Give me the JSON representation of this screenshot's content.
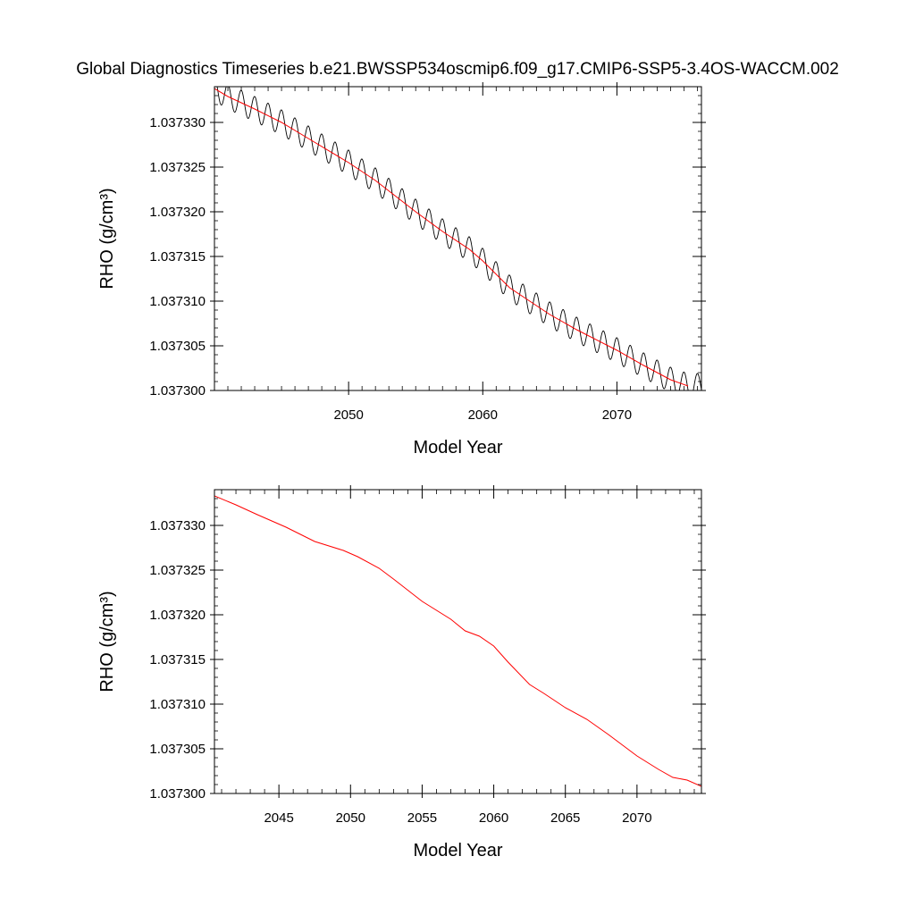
{
  "title": "Global Diagnostics Timeseries b.e21.BWSSP534oscmip6.f09_g17.CMIP6-SSP5-3.4OS-WACCM.002",
  "colors": {
    "raw_series": "#000000",
    "smooth_series": "#ff0000",
    "axes": "#000000"
  },
  "chart_data": [
    {
      "type": "line",
      "xlabel": "Model Year",
      "ylabel": "RHO (g/cm³)",
      "xlim": [
        2040,
        2076.3
      ],
      "ylim": [
        1.0373,
        1.037334
      ],
      "xticks": [
        2050,
        2060,
        2070
      ],
      "xtick_labels": [
        "2050",
        "2060",
        "2070"
      ],
      "yticks": [
        1.0373,
        1.037305,
        1.03731,
        1.037315,
        1.03732,
        1.037325,
        1.03733
      ],
      "ytick_labels": [
        "1.037300",
        "1.037305",
        "1.037310",
        "1.037315",
        "1.037320",
        "1.037325",
        "1.037330"
      ],
      "grid": false,
      "series": [
        {
          "role": "monthly",
          "color": "#000000",
          "trend": {
            "x": [
              2040.0,
              2041.0,
              2043.0,
              2045.0,
              2047.0,
              2050.0,
              2052.0,
              2055.0,
              2057.0,
              2059.0,
              2060.0,
              2062.0,
              2065.0,
              2067.0,
              2070.0,
              2072.0,
              2074.0,
              2075.3
            ],
            "y": [
              1.0373338,
              1.0373329,
              1.0373315,
              1.03733,
              1.0373282,
              1.0373255,
              1.0373235,
              1.03732,
              1.0373178,
              1.0373158,
              1.0373145,
              1.0373115,
              1.0373085,
              1.0373068,
              1.0373045,
              1.0373028,
              1.0373012,
              1.0373005
            ]
          },
          "seasonal_amplitude": 1.4e-06,
          "period_years": 1
        },
        {
          "role": "annual-smoothed",
          "color": "#ff0000",
          "x": [
            2040.0,
            2041.0,
            2043.0,
            2045.0,
            2047.0,
            2050.0,
            2052.0,
            2055.0,
            2057.0,
            2059.0,
            2060.0,
            2062.0,
            2065.0,
            2067.0,
            2070.0,
            2072.0,
            2074.0,
            2075.3
          ],
          "y": [
            1.0373338,
            1.0373329,
            1.0373315,
            1.03733,
            1.0373282,
            1.0373255,
            1.0373235,
            1.03732,
            1.0373178,
            1.0373158,
            1.0373145,
            1.0373115,
            1.0373085,
            1.0373068,
            1.0373045,
            1.0373028,
            1.0373012,
            1.0373005
          ]
        }
      ]
    },
    {
      "type": "line",
      "xlabel": "Model Year",
      "ylabel": "RHO (g/cm³)",
      "xlim": [
        2040.5,
        2074.5
      ],
      "ylim": [
        1.0373,
        1.037334
      ],
      "xticks": [
        2045,
        2050,
        2055,
        2060,
        2065,
        2070
      ],
      "xtick_labels": [
        "2045",
        "2050",
        "2055",
        "2060",
        "2065",
        "2070"
      ],
      "yticks": [
        1.0373,
        1.037305,
        1.03731,
        1.037315,
        1.03732,
        1.037325,
        1.03733
      ],
      "ytick_labels": [
        "1.037300",
        "1.037305",
        "1.037310",
        "1.037315",
        "1.037320",
        "1.037325",
        "1.037330"
      ],
      "grid": false,
      "series": [
        {
          "role": "annual-smoothed",
          "color": "#ff0000",
          "x": [
            2040.5,
            2042.0,
            2043.5,
            2045.5,
            2047.5,
            2049.5,
            2050.5,
            2052.0,
            2053.0,
            2055.0,
            2057.0,
            2058.0,
            2059.0,
            2060.0,
            2061.0,
            2062.5,
            2063.5,
            2065.0,
            2066.5,
            2068.0,
            2070.0,
            2071.5,
            2072.5,
            2073.5,
            2074.5
          ],
          "y": [
            1.0373333,
            1.0373323,
            1.0373312,
            1.0373298,
            1.0373282,
            1.0373272,
            1.0373265,
            1.0373252,
            1.037324,
            1.0373215,
            1.0373195,
            1.0373182,
            1.0373176,
            1.0373165,
            1.0373147,
            1.0373122,
            1.0373112,
            1.0373096,
            1.0373083,
            1.0373066,
            1.0373042,
            1.0373027,
            1.0373018,
            1.0373015,
            1.0373008
          ]
        }
      ]
    }
  ]
}
